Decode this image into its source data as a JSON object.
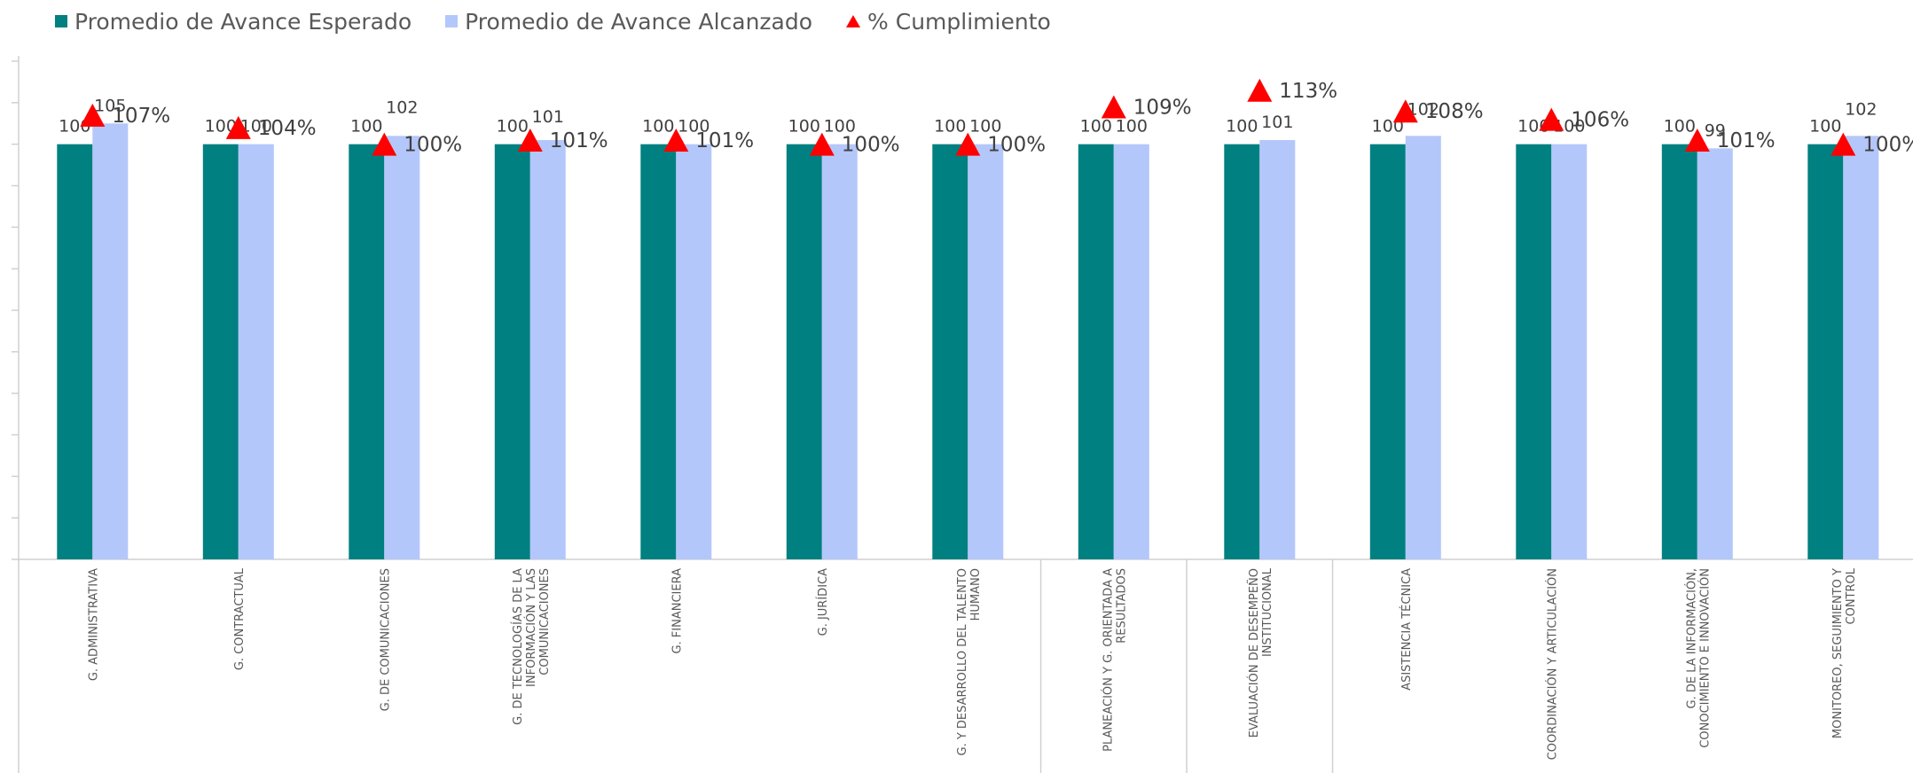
{
  "chart_data": {
    "type": "bar",
    "categories": [
      "G. ADMINISTRATIVA",
      "G. CONTRACTUAL",
      "G. DE COMUNICACIONES",
      "G. DE TECNOLOGÍAS DE LA INFORMACIÓN Y LAS COMUNICACIONES",
      "G. FINANCIERA",
      "G. JURÍDICA",
      "G. Y DESARROLLO DEL TALENTO HUMANO",
      "PLANEACIÓN Y G. ORIENTADA A RESULTADOS",
      "EVALUACIÓN DE DESEMPEÑO INSTITUCIONAL",
      "ASISTENCIA TÉCNICA",
      "COORDINACIÓN Y ARTICULACIÓN",
      "G. DE LA INFORMACIÓN, CONOCIMIENTO E INNOVACIÓN",
      "MONITOREO, SEGUIMIENTO Y CONTROL"
    ],
    "category_lines": [
      [
        "G. ADMINISTRATIVA"
      ],
      [
        "G. CONTRACTUAL"
      ],
      [
        "G. DE COMUNICACIONES"
      ],
      [
        "G. DE TECNOLOGÍAS DE LA",
        "INFORMACIÓN Y LAS",
        "COMUNICACIONES"
      ],
      [
        "G. FINANCIERA"
      ],
      [
        "G. JURÍDICA"
      ],
      [
        "G. Y DESARROLLO DEL TALENTO",
        "HUMANO"
      ],
      [
        "PLANEACIÓN Y G. ORIENTADA A",
        "RESULTADOS"
      ],
      [
        "EVALUACIÓN DE DESEMPEÑO",
        "INSTITUCIONAL"
      ],
      [
        "ASISTENCIA TÉCNICA"
      ],
      [
        "COORDINACIÓN Y ARTICULACIÓN"
      ],
      [
        "G. DE LA INFORMACIÓN,",
        "CONOCIMIENTO E INNOVACIÓN"
      ],
      [
        "MONITOREO, SEGUIMIENTO Y",
        "CONTROL"
      ]
    ],
    "series": [
      {
        "name": "Promedio de Avance Esperado",
        "kind": "bar",
        "color": "#008080",
        "values": [
          100,
          100,
          100,
          100,
          100,
          100,
          100,
          100,
          100,
          100,
          100,
          100,
          100
        ],
        "labels": [
          "100",
          "100",
          "100",
          "100",
          "100",
          "100",
          "100",
          "100",
          "100",
          "100",
          "100",
          "100",
          "100"
        ]
      },
      {
        "name": "Promedio de Avance Alcanzado",
        "kind": "bar",
        "color": "#b4c7fa",
        "values": [
          105,
          100,
          102,
          101,
          100,
          100,
          100,
          100,
          101,
          102,
          100,
          99,
          102
        ],
        "labels": [
          "105",
          "100",
          "102",
          "101",
          "100",
          "100",
          "100",
          "100",
          "101",
          "102",
          "100",
          "99",
          "102"
        ]
      },
      {
        "name": "% Cumplimiento",
        "kind": "marker",
        "marker": "triangle",
        "color": "#ff0000",
        "values": [
          107,
          104,
          100,
          101,
          101,
          100,
          100,
          109,
          113,
          108,
          106,
          101,
          100
        ],
        "labels": [
          "107%",
          "104%",
          "100%",
          "101%",
          "101%",
          "100%",
          "100%",
          "109%",
          "113%",
          "108%",
          "106%",
          "101%",
          "100%"
        ]
      }
    ],
    "ylim": [
      0,
      120
    ],
    "y_ticks": [
      0,
      10,
      20,
      30,
      40,
      50,
      60,
      70,
      80,
      90,
      100,
      110,
      120
    ],
    "tick_labels_shown": false,
    "grid": false,
    "legend": "top-left",
    "title": "",
    "xlabel": "",
    "ylabel": ""
  }
}
